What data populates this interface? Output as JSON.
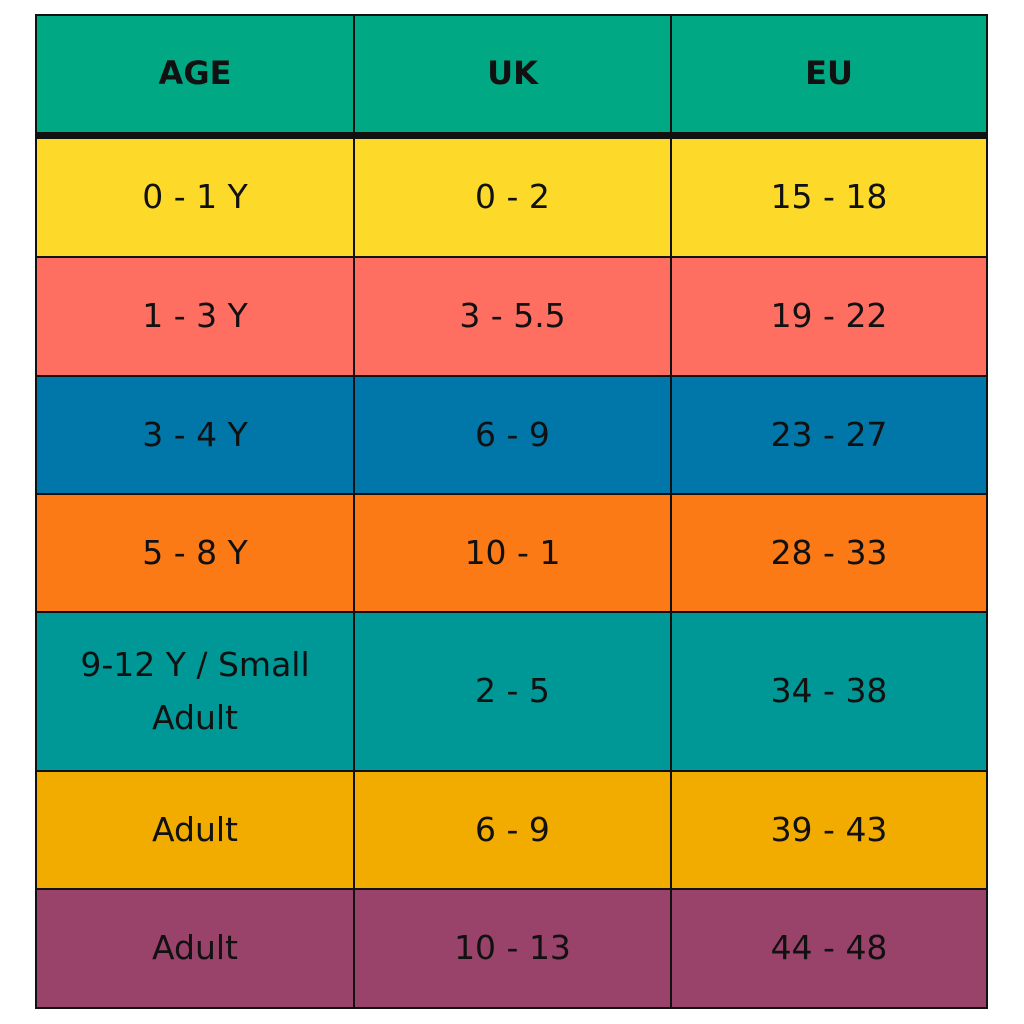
{
  "table": {
    "header": [
      "AGE",
      "UK",
      "EU"
    ],
    "rows": [
      [
        "0 - 1 Y",
        "0 - 2",
        "15 - 18"
      ],
      [
        "1 - 3 Y",
        "3 - 5.5",
        "19 - 22"
      ],
      [
        "3 - 4 Y",
        "6 - 9",
        "23 - 27"
      ],
      [
        "5 - 8 Y",
        "10 - 1",
        "28 - 33"
      ],
      [
        "9-12 Y / Small Adult",
        "2 - 5",
        "34 - 38"
      ],
      [
        "Adult",
        "6 - 9",
        "39 - 43"
      ],
      [
        "Adult",
        "10 - 13",
        "44 - 48"
      ]
    ]
  }
}
